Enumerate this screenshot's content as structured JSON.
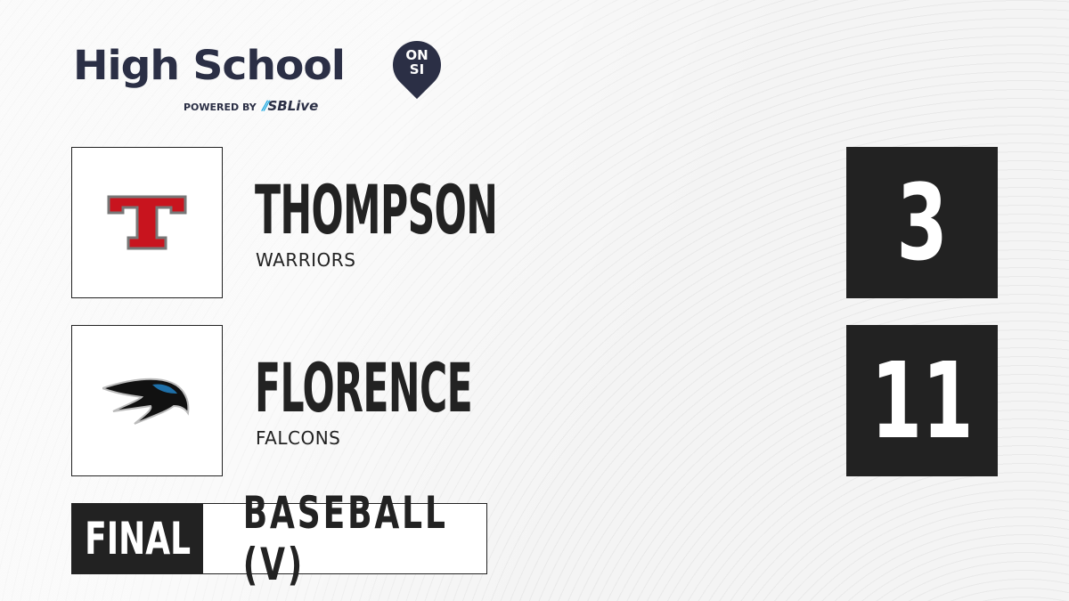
{
  "brand": {
    "title": "High School",
    "badge_top": "ON",
    "badge_bottom": "SI",
    "powered_by": "POWERED BY",
    "partner": "SBLive",
    "accent": "#1fa8e0",
    "navy": "#2b2f45"
  },
  "teams": [
    {
      "name": "THOMPSON",
      "mascot": "WARRIORS",
      "score": "3",
      "logo": "red-letter-t-logo",
      "color": "#c8141e"
    },
    {
      "name": "FLORENCE",
      "mascot": "FALCONS",
      "score": "11",
      "logo": "falcon-head-logo",
      "color": "#1e6fa8"
    }
  ],
  "status": {
    "state": "FINAL",
    "sport": "BASEBALL (V)"
  }
}
